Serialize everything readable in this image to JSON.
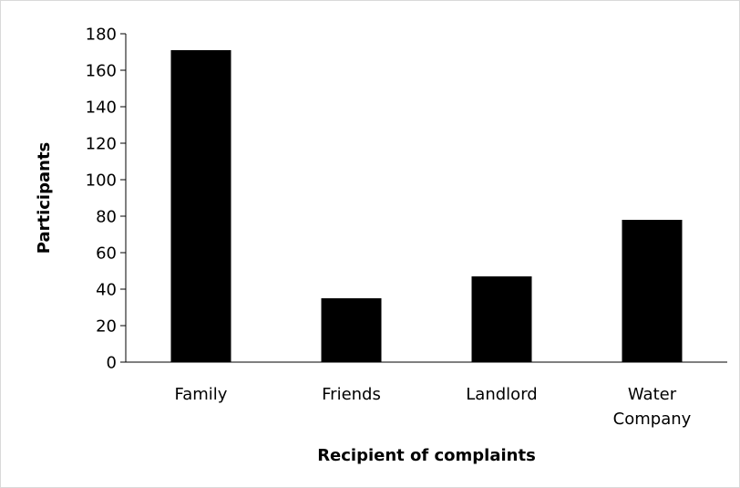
{
  "chart_data": {
    "type": "bar",
    "title": "",
    "xlabel": "Recipient of complaints",
    "ylabel": "Participants",
    "categories": [
      [
        "Family"
      ],
      [
        "Friends"
      ],
      [
        "Landlord"
      ],
      [
        "Water",
        "Company"
      ]
    ],
    "values": [
      171,
      35,
      47,
      78
    ],
    "ylim": [
      0,
      180
    ],
    "yticks": [
      "0",
      "20",
      "40",
      "60",
      "80",
      "100",
      "120",
      "140",
      "160",
      "180"
    ],
    "grid": false,
    "legend": "none",
    "bar_color": "#000000",
    "axis_color": "#000000"
  }
}
